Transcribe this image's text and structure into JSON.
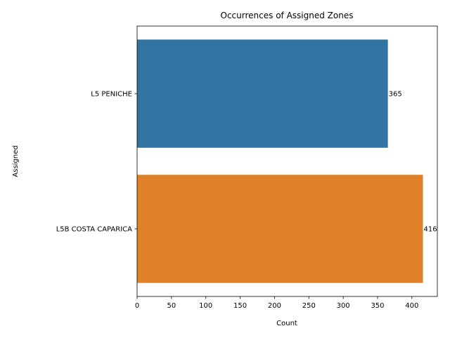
{
  "chart_data": {
    "type": "bar",
    "orientation": "horizontal",
    "title": "Occurrences of Assigned Zones",
    "xlabel": "Count",
    "ylabel": "Assigned",
    "categories": [
      "L5 PENICHE",
      "L5B COSTA CAPARICA"
    ],
    "values": [
      365,
      416
    ],
    "data_labels": [
      "365",
      "416"
    ],
    "colors": [
      "#3274a1",
      "#e1812c"
    ],
    "xlim": [
      0,
      437
    ],
    "xticks": [
      0,
      50,
      100,
      150,
      200,
      250,
      300,
      350,
      400
    ],
    "xtick_labels": [
      "0",
      "50",
      "100",
      "150",
      "200",
      "250",
      "300",
      "350",
      "400"
    ],
    "grid": false,
    "legend": "none"
  }
}
